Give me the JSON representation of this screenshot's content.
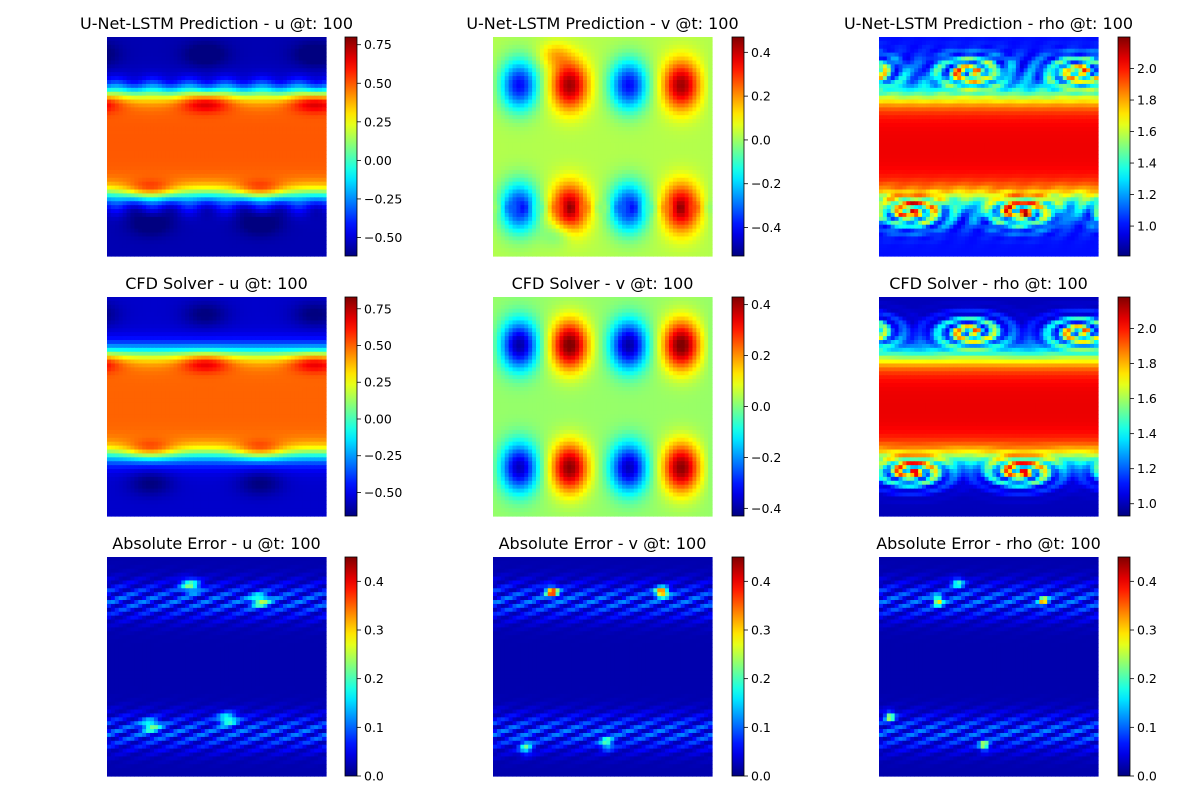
{
  "colormap": {
    "name": "jet",
    "stops": [
      "#00007f",
      "#0000ff",
      "#007fff",
      "#00ffff",
      "#7fff7f",
      "#ffff00",
      "#ff7f00",
      "#ff0000",
      "#7f0000"
    ]
  },
  "chart_data": [
    {
      "type": "heatmap",
      "row": 0,
      "col": 0,
      "title": "U-Net-LSTM Prediction - u @t: 100",
      "field": "u",
      "source": "prediction",
      "clim": [
        -0.62,
        0.8
      ],
      "colorbar_ticks": [
        "−0.50",
        "−0.25",
        "0.00",
        "0.25",
        "0.50",
        "0.75"
      ],
      "colorbar_tick_values": [
        -0.5,
        -0.25,
        0,
        0.25,
        0.5,
        0.75
      ]
    },
    {
      "type": "heatmap",
      "row": 0,
      "col": 1,
      "title": "U-Net-LSTM Prediction - v @t: 100",
      "field": "v",
      "source": "prediction",
      "clim": [
        -0.53,
        0.47
      ],
      "colorbar_ticks": [
        "−0.4",
        "−0.2",
        "0.0",
        "0.2",
        "0.4"
      ],
      "colorbar_tick_values": [
        -0.4,
        -0.2,
        0,
        0.2,
        0.4
      ]
    },
    {
      "type": "heatmap",
      "row": 0,
      "col": 2,
      "title": "U-Net-LSTM Prediction - rho @t: 100",
      "field": "rho",
      "source": "prediction",
      "clim": [
        0.81,
        2.2
      ],
      "colorbar_ticks": [
        "1.0",
        "1.2",
        "1.4",
        "1.6",
        "1.8",
        "2.0"
      ],
      "colorbar_tick_values": [
        1.0,
        1.2,
        1.4,
        1.6,
        1.8,
        2.0
      ]
    },
    {
      "type": "heatmap",
      "row": 1,
      "col": 0,
      "title": "CFD Solver - u @t: 100",
      "field": "u",
      "source": "solver",
      "clim": [
        -0.66,
        0.83
      ],
      "colorbar_ticks": [
        "−0.50",
        "−0.25",
        "0.00",
        "0.25",
        "0.50",
        "0.75"
      ],
      "colorbar_tick_values": [
        -0.5,
        -0.25,
        0,
        0.25,
        0.5,
        0.75
      ]
    },
    {
      "type": "heatmap",
      "row": 1,
      "col": 1,
      "title": "CFD Solver - v @t: 100",
      "field": "v",
      "source": "solver",
      "clim": [
        -0.43,
        0.43
      ],
      "colorbar_ticks": [
        "−0.4",
        "−0.2",
        "0.0",
        "0.2",
        "0.4"
      ],
      "colorbar_tick_values": [
        -0.4,
        -0.2,
        0,
        0.2,
        0.4
      ]
    },
    {
      "type": "heatmap",
      "row": 1,
      "col": 2,
      "title": "CFD Solver - rho @t: 100",
      "field": "rho",
      "source": "solver",
      "clim": [
        0.93,
        2.18
      ],
      "colorbar_ticks": [
        "1.0",
        "1.2",
        "1.4",
        "1.6",
        "1.8",
        "2.0"
      ],
      "colorbar_tick_values": [
        1.0,
        1.2,
        1.4,
        1.6,
        1.8,
        2.0
      ]
    },
    {
      "type": "heatmap",
      "row": 2,
      "col": 0,
      "title": "Absolute Error - u @t: 100",
      "field": "u",
      "source": "error",
      "clim": [
        0.0,
        0.45
      ],
      "colorbar_ticks": [
        "0.0",
        "0.1",
        "0.2",
        "0.3",
        "0.4"
      ],
      "colorbar_tick_values": [
        0.0,
        0.1,
        0.2,
        0.3,
        0.4
      ]
    },
    {
      "type": "heatmap",
      "row": 2,
      "col": 1,
      "title": "Absolute Error - v @t: 100",
      "field": "v",
      "source": "error",
      "clim": [
        0.0,
        0.45
      ],
      "colorbar_ticks": [
        "0.0",
        "0.1",
        "0.2",
        "0.3",
        "0.4"
      ],
      "colorbar_tick_values": [
        0.0,
        0.1,
        0.2,
        0.3,
        0.4
      ]
    },
    {
      "type": "heatmap",
      "row": 2,
      "col": 2,
      "title": "Absolute Error - rho @t: 100",
      "field": "rho",
      "source": "error",
      "clim": [
        0.0,
        0.45
      ],
      "colorbar_ticks": [
        "0.0",
        "0.1",
        "0.2",
        "0.3",
        "0.4"
      ],
      "colorbar_tick_values": [
        0.0,
        0.1,
        0.2,
        0.3,
        0.4
      ]
    }
  ]
}
